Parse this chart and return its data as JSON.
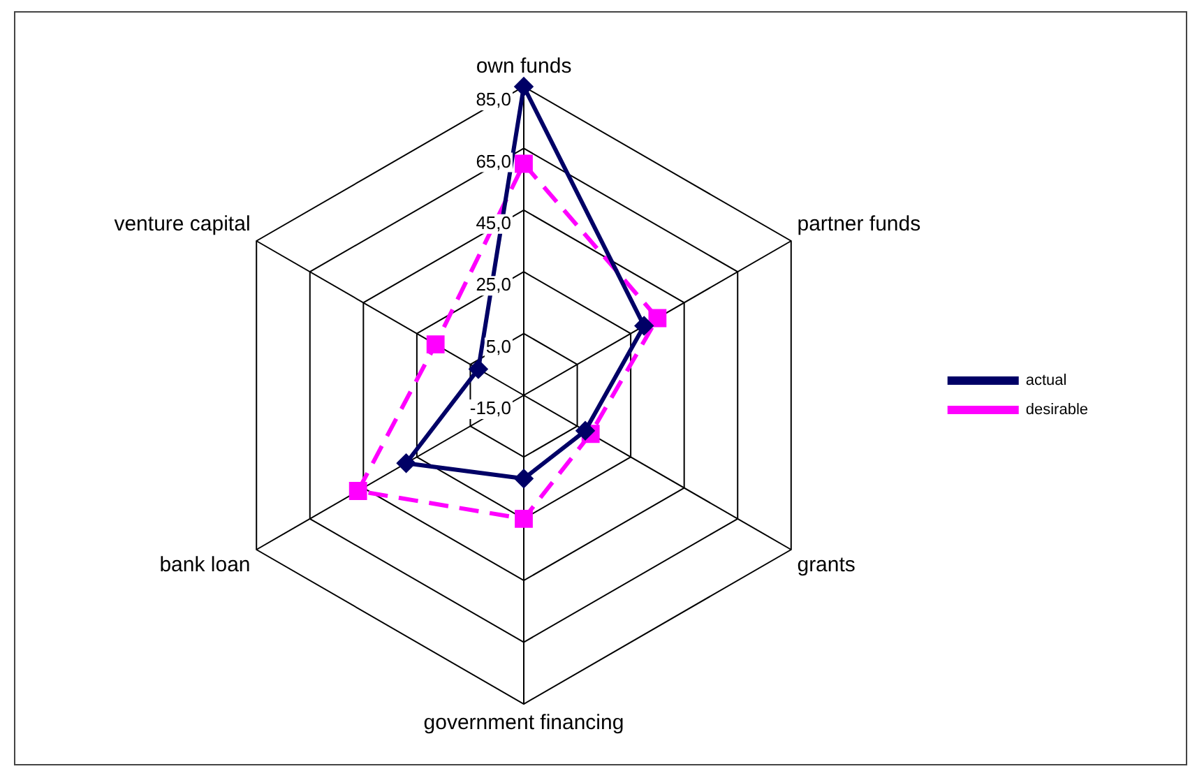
{
  "chart_data": {
    "type": "radar",
    "categories": [
      "own funds",
      "partner funds",
      "grants",
      "government financing",
      "bank loan",
      "venture capital"
    ],
    "series": [
      {
        "name": "actual",
        "color": "#000066",
        "values": [
          85,
          30,
          8,
          12,
          29,
          2
        ],
        "marker": "diamond",
        "line_style": "solid"
      },
      {
        "name": "desirable",
        "color": "#ff00ff",
        "values": [
          60,
          35,
          10,
          25,
          47,
          18
        ],
        "marker": "square",
        "line_style": "dashed"
      }
    ],
    "ylim": [
      -15,
      85
    ],
    "yticks": [
      {
        "value": -15,
        "label": "-15,0"
      },
      {
        "value": 5,
        "label": "5,0"
      },
      {
        "value": 25,
        "label": "25,0"
      },
      {
        "value": 45,
        "label": "45,0"
      },
      {
        "value": 65,
        "label": "65,0"
      },
      {
        "value": 85,
        "label": "85,0"
      }
    ],
    "grid": true,
    "legend": "right"
  }
}
